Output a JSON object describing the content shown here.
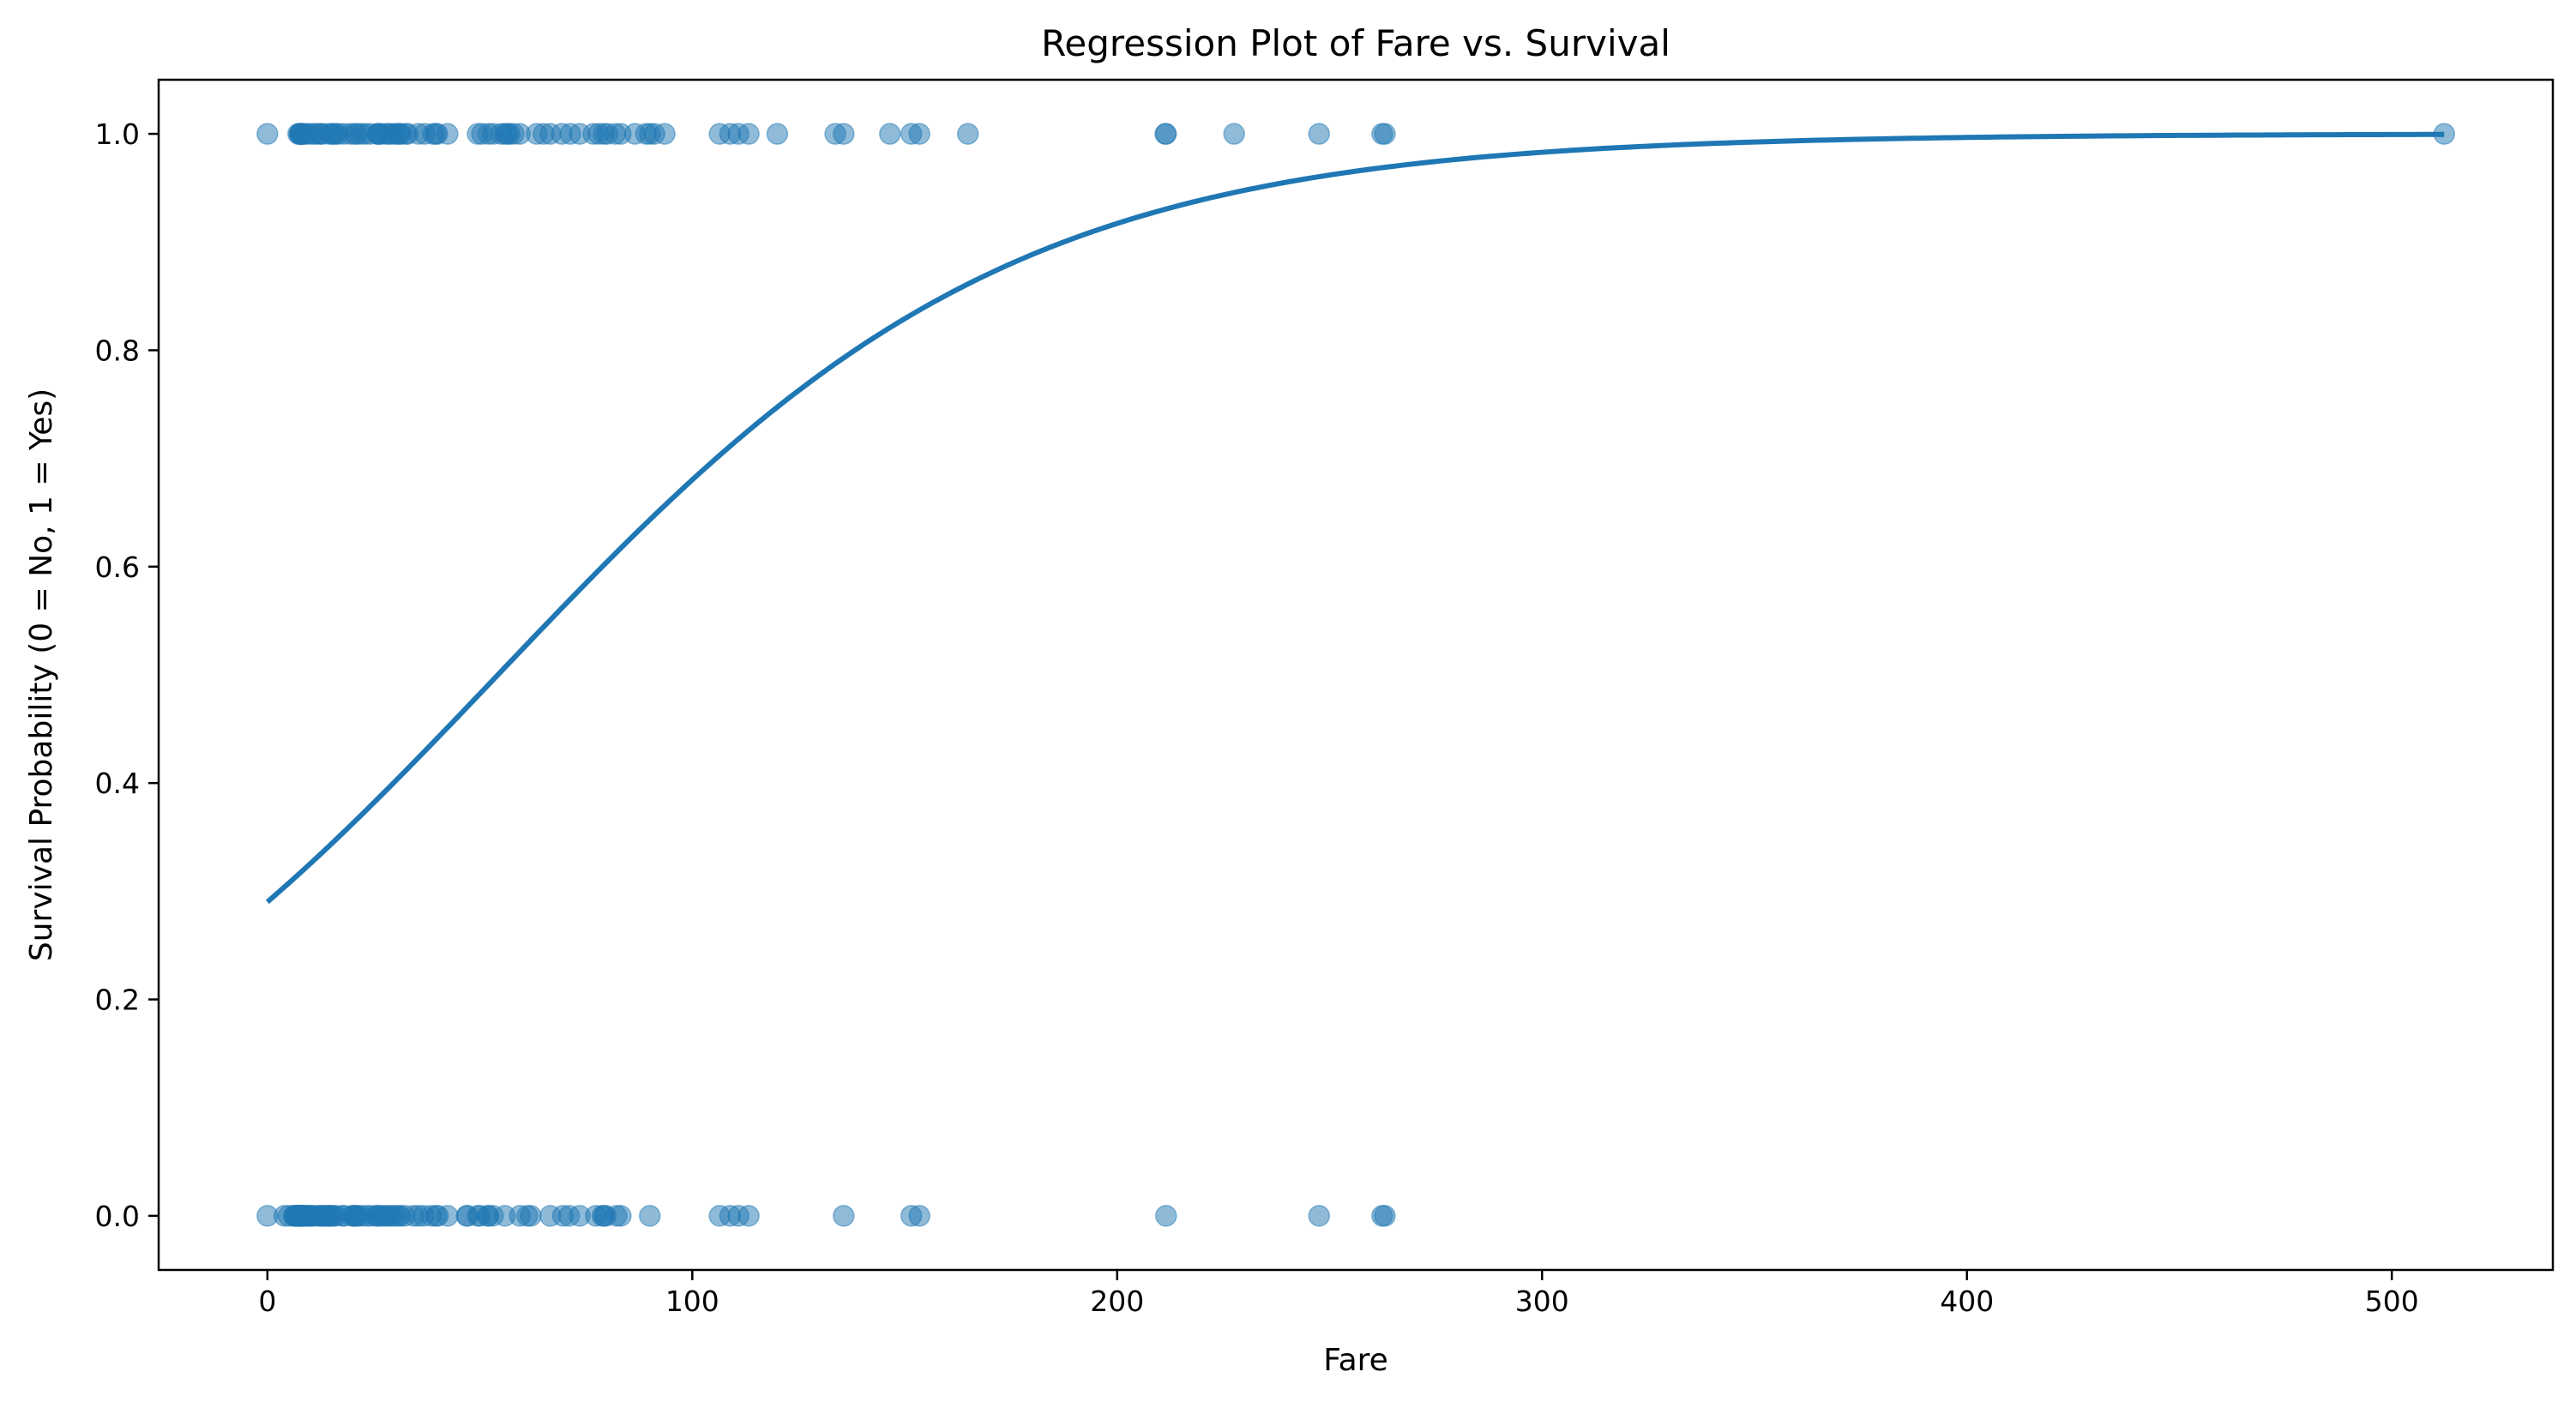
{
  "chart_data": {
    "type": "scatter",
    "title": "Regression Plot of Fare vs. Survival",
    "xlabel": "Fare",
    "ylabel": "Survival Probability (0 = No, 1 = Yes)",
    "xlim": [
      -25.6,
      537.9
    ],
    "ylim": [
      -0.05,
      1.05
    ],
    "xticks": [
      0,
      100,
      200,
      300,
      400,
      500
    ],
    "xtick_labels": [
      "0",
      "100",
      "200",
      "300",
      "400",
      "500"
    ],
    "yticks": [
      0.0,
      0.2,
      0.4,
      0.6,
      0.8,
      1.0
    ],
    "ytick_labels": [
      "0.0",
      "0.2",
      "0.4",
      "0.6",
      "0.8",
      "1.0"
    ],
    "grid": false,
    "colors": {
      "points": "#1f77b4",
      "line": "#1f77b4",
      "point_alpha": 0.5
    },
    "series": [
      {
        "kind": "scatter",
        "y": 1,
        "x": [
          0,
          7.25,
          7.55,
          7.75,
          7.8,
          7.9,
          7.925,
          8.05,
          8.5,
          8.66,
          9.5,
          10.5,
          11.13,
          12.0,
          12.48,
          13.0,
          14.45,
          15.25,
          15.5,
          16.1,
          16.7,
          18.0,
          19.5,
          20.5,
          21.0,
          22.0,
          23.0,
          24.15,
          25.93,
          26.0,
          26.25,
          26.55,
          27.75,
          28.5,
          29.0,
          30.0,
          30.5,
          31.0,
          31.39,
          32.5,
          33.0,
          35.5,
          37.0,
          39.0,
          39.6,
          40.0,
          42.4,
          49.5,
          50.5,
          52.0,
          53.1,
          55.0,
          55.9,
          56.5,
          57.0,
          57.98,
          59.4,
          63.36,
          65.0,
          66.6,
          69.3,
          71.28,
          73.5,
          76.73,
          77.96,
          79.2,
          80.0,
          81.86,
          83.16,
          86.5,
          89.1,
          90.0,
          91.08,
          93.5,
          106.43,
          108.9,
          110.88,
          113.28,
          120.0,
          133.65,
          135.63,
          146.52,
          151.55,
          153.46,
          164.87,
          211.34,
          211.5,
          227.53,
          247.52,
          262.38,
          263.0,
          512.33
        ]
      },
      {
        "kind": "scatter",
        "y": 0,
        "x": [
          0,
          4.01,
          5.0,
          6.24,
          6.45,
          6.5,
          6.75,
          7.05,
          7.13,
          7.23,
          7.25,
          7.5,
          7.55,
          7.65,
          7.75,
          7.8,
          7.85,
          7.9,
          8.05,
          8.16,
          8.43,
          8.66,
          9.0,
          9.22,
          9.5,
          9.84,
          10.46,
          10.5,
          11.5,
          12.29,
          12.48,
          13.0,
          13.5,
          14.1,
          14.45,
          14.5,
          15.05,
          15.5,
          16.1,
          17.8,
          18.0,
          19.97,
          20.25,
          20.53,
          21.0,
          21.08,
          22.03,
          23.25,
          24.15,
          25.47,
          26.0,
          26.25,
          27.0,
          27.72,
          28.5,
          29.13,
          30.0,
          30.7,
          31.28,
          32.32,
          34.38,
          35.5,
          36.75,
          38.5,
          39.69,
          40.13,
          42.4,
          46.9,
          47.1,
          49.5,
          50.0,
          51.86,
          52.0,
          53.1,
          55.9,
          59.4,
          61.18,
          61.98,
          66.6,
          69.55,
          71.0,
          73.5,
          77.29,
          78.85,
          79.2,
          79.65,
          82.17,
          83.16,
          90.0,
          106.43,
          108.9,
          110.88,
          113.28,
          135.63,
          151.55,
          153.46,
          211.5,
          247.52,
          262.38,
          263.0
        ]
      },
      {
        "kind": "logistic-fit",
        "intercept": -0.895,
        "slope": 0.0165,
        "x_start": 0,
        "x_end": 512.33
      }
    ]
  }
}
